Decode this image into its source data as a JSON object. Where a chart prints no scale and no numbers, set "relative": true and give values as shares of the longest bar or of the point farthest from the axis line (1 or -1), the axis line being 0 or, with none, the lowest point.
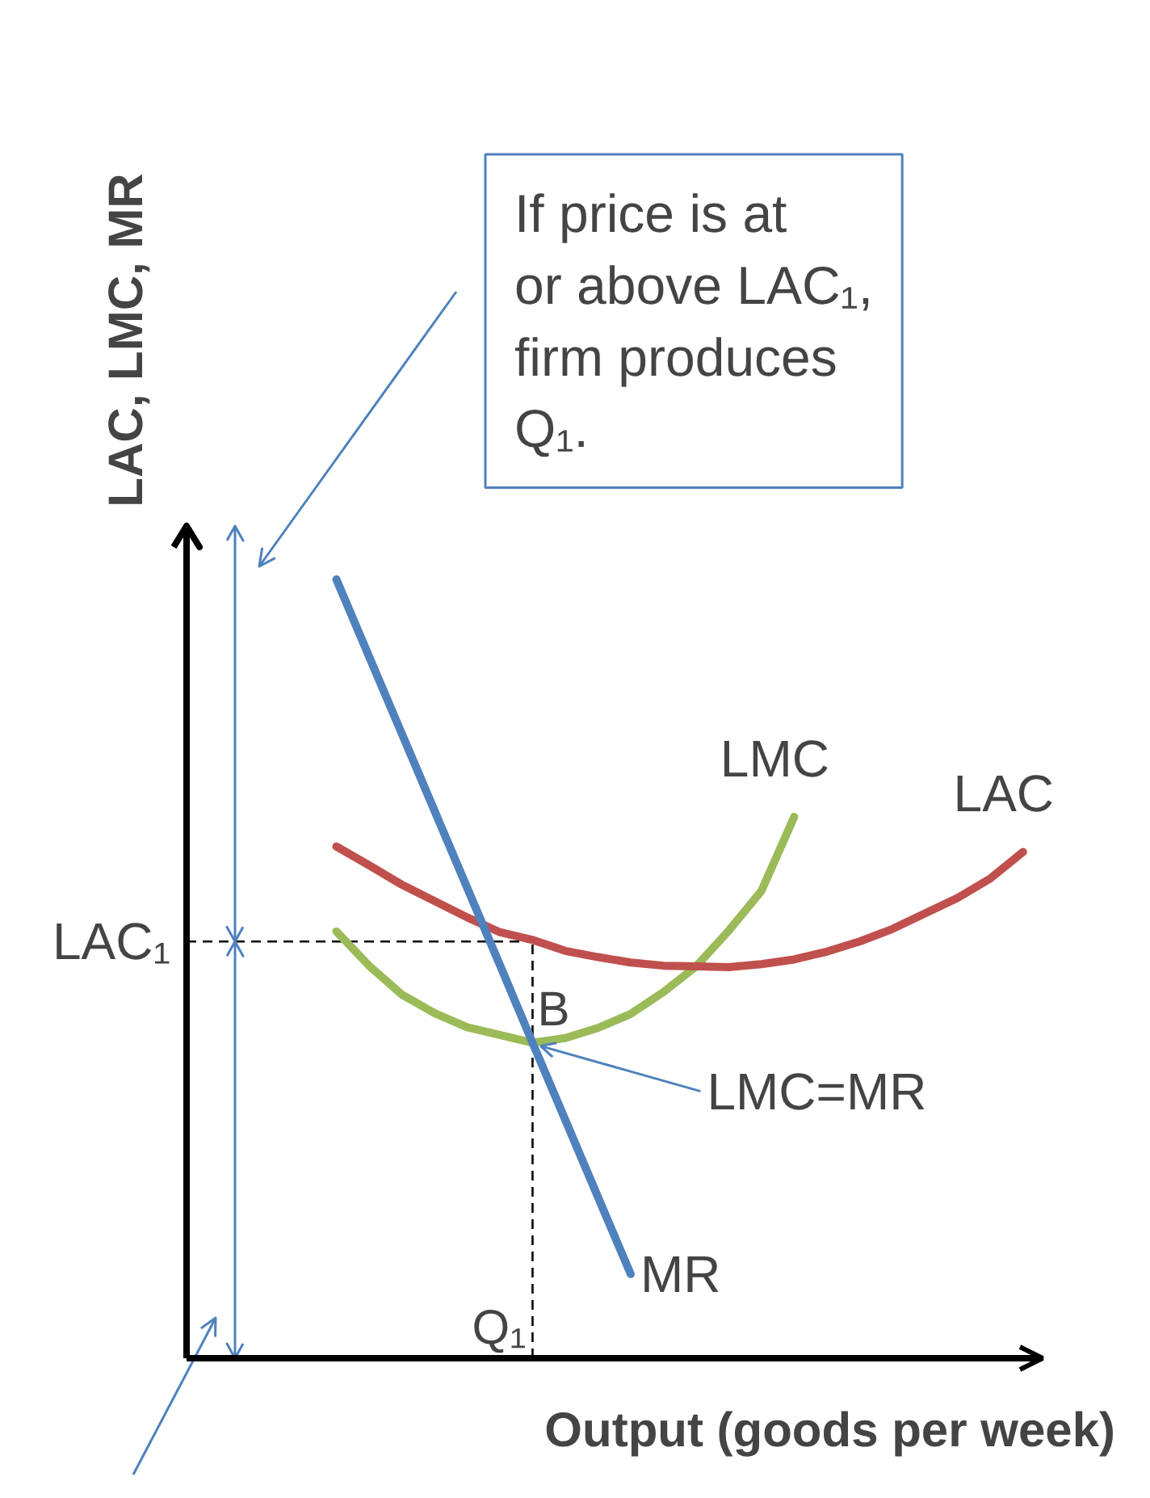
{
  "chart_data": {
    "type": "line",
    "relative": true,
    "xlabel": "Output (goods per week)",
    "ylabel": "LAC, LMC, MR",
    "categories": [
      null,
      null,
      null,
      null,
      null,
      null,
      null,
      null,
      null,
      null,
      null,
      null,
      null,
      null,
      null,
      null,
      null,
      null,
      null,
      null,
      null,
      null
    ],
    "series": [
      {
        "name": "LMC",
        "color": "#9bbb59",
        "values": [
          0.548,
          0.504,
          0.467,
          0.443,
          0.425,
          0.415,
          0.405,
          0.411,
          0.424,
          0.442,
          0.47,
          0.503,
          0.549,
          0.6,
          0.695,
          null,
          null,
          null,
          null,
          null,
          null,
          null
        ]
      },
      {
        "name": "LAC",
        "color": "#c0504d",
        "values": [
          0.657,
          0.633,
          0.608,
          0.587,
          0.566,
          0.547,
          0.537,
          0.523,
          0.515,
          0.508,
          0.504,
          0.503,
          0.502,
          0.506,
          0.512,
          0.522,
          0.535,
          0.551,
          0.571,
          0.591,
          0.616,
          0.65
        ]
      },
      {
        "name": "MR",
        "color": "#4f81bd",
        "values": [
          1.0,
          0.901,
          0.802,
          0.703,
          0.604,
          0.505,
          0.405,
          0.306,
          0.207,
          0.108,
          null,
          null,
          null,
          null,
          null,
          null,
          null,
          null,
          null,
          null,
          null,
          null
        ]
      }
    ],
    "ref_lines": [
      {
        "axis": "y",
        "value": 0.535,
        "label": "LAC₁",
        "line_style": "dashed"
      },
      {
        "axis": "x",
        "label": "Q₁",
        "line_style": "dashed"
      }
    ],
    "annotations": [
      "If price is at or above LAC₁, firm produces Q₁.",
      {
        "text": "B",
        "y": 0.405
      },
      "LMC=MR"
    ]
  }
}
